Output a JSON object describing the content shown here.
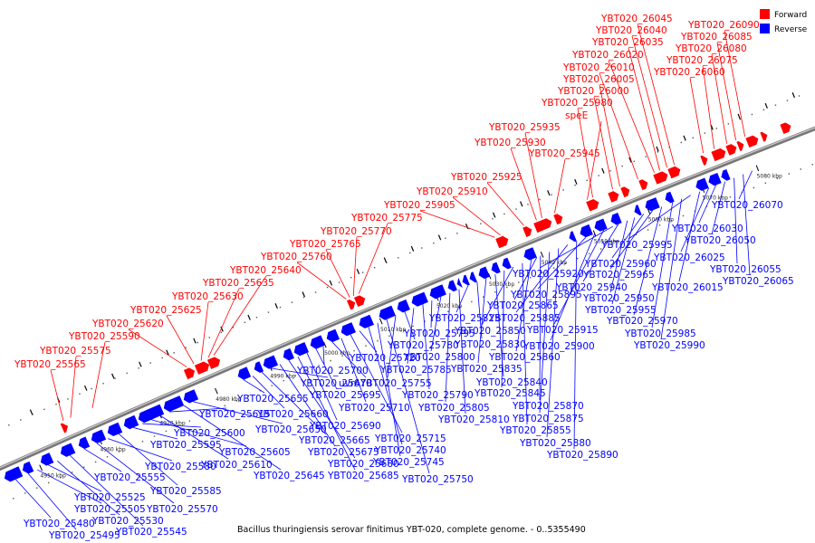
{
  "caption": "Bacillus thuringiensis serovar finitimus YBT-020, complete genome. - 0..5355490",
  "legend": [
    {
      "label": "Forward",
      "color": "#ff0000"
    },
    {
      "label": "Reverse",
      "color": "#0000ff"
    }
  ],
  "colors": {
    "forward": "#ff0000",
    "reverse": "#0000ff",
    "backbone": "#555555"
  },
  "scale_labels": [
    "4950 kbp",
    "4960 kbp",
    "4970 kbp",
    "4980 kbp",
    "4990 kbp",
    "5000 kbp",
    "5010 kbp",
    "5020 kbp",
    "5030 kbp",
    "5040 kbp",
    "5050 kbp",
    "5060 kbp",
    "5070 kbp",
    "5080 kbp"
  ],
  "forward_labels": [
    "YBT020_25565",
    "YBT020_25575",
    "YBT020_25590",
    "YBT020_25620",
    "YBT020_25625",
    "YBT020_25630",
    "YBT020_25635",
    "YBT020_25640",
    "YBT020_25760",
    "YBT020_25765",
    "YBT020_25770",
    "YBT020_25775",
    "YBT020_25905",
    "YBT020_25910",
    "YBT020_25925",
    "YBT020_25930",
    "YBT020_25935",
    "YBT020_25945",
    "speE",
    "YBT020_25980",
    "YBT020_26000",
    "YBT020_26005",
    "YBT020_26010",
    "YBT020_26020",
    "YBT020_26035",
    "YBT020_26040",
    "YBT020_26045",
    "YBT020_26060",
    "YBT020_26075",
    "YBT020_26080",
    "YBT020_26085",
    "YBT020_26090"
  ],
  "reverse_labels": [
    "YBT020_25480",
    "YBT020_25495",
    "YBT020_25505",
    "YBT020_25525",
    "YBT020_25530",
    "YBT020_25545",
    "YBT020_25555",
    "YBT020_25570",
    "YBT020_25580",
    "YBT020_25585",
    "YBT020_25595",
    "YBT020_25600",
    "YBT020_25605",
    "YBT020_25610",
    "YBT020_25615",
    "YBT020_25645",
    "YBT020_25650",
    "YBT020_25655",
    "YBT020_25660",
    "YBT020_25665",
    "YBT020_25670",
    "YBT020_25675",
    "YBT020_25680",
    "YBT020_25685",
    "YBT020_25690",
    "YBT020_25695",
    "YBT020_25700",
    "uvrA",
    "YBT020_25710",
    "YBT020_25715",
    "YBT020_25720",
    "YBT020_25740",
    "YBT020_25745",
    "YBT020_25750",
    "YBT020_25755",
    "YBT020_25780",
    "YBT020_25785",
    "YBT020_25790",
    "YBT020_25795",
    "YBT020_25800",
    "YBT020_25805",
    "YBT020_25810",
    "YBT020_25825",
    "YBT020_25830",
    "YBT020_25835",
    "YBT020_25840",
    "YBT020_25845",
    "YBT020_25850",
    "YBT020_25855",
    "YBT020_25860",
    "YBT020_25865",
    "YBT020_25870",
    "YBT020_25875",
    "YBT020_25880",
    "YBT020_25885",
    "YBT020_25890",
    "YBT020_25895",
    "YBT020_25900",
    "YBT020_25915",
    "YBT020_25920",
    "YBT020_25940",
    "YBT020_25950",
    "YBT020_25955",
    "YBT020_25960",
    "YBT020_25965",
    "YBT020_25970",
    "YBT020_25985",
    "YBT020_25990",
    "YBT020_25995",
    "YBT020_26015",
    "YBT020_26025",
    "YBT020_26030",
    "YBT020_26050",
    "YBT020_26055",
    "YBT020_26065",
    "YBT020_26070"
  ]
}
